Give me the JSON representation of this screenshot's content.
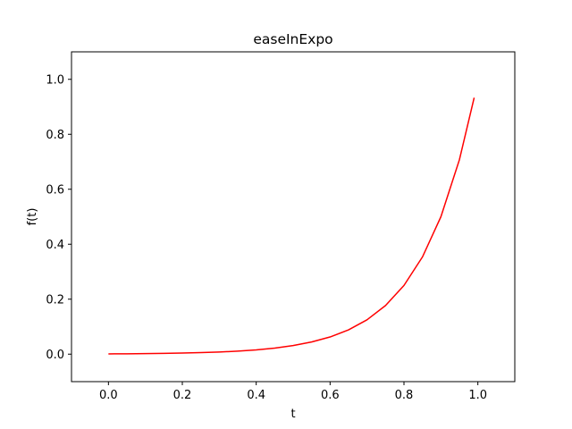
{
  "chart_data": {
    "type": "line",
    "title": "easeInExpo",
    "xlabel": "t",
    "ylabel": "f(t)",
    "xlim": [
      -0.1,
      1.1
    ],
    "ylim": [
      -0.1,
      1.1
    ],
    "xticks": [
      0.0,
      0.2,
      0.4,
      0.6,
      0.8,
      1.0
    ],
    "xtick_labels": [
      "0.0",
      "0.2",
      "0.4",
      "0.6",
      "0.8",
      "1.0"
    ],
    "yticks": [
      0.0,
      0.2,
      0.4,
      0.6,
      0.8,
      1.0
    ],
    "ytick_labels": [
      "0.0",
      "0.2",
      "0.4",
      "0.6",
      "0.8",
      "1.0"
    ],
    "grid": false,
    "series": [
      {
        "color": "#ff0000",
        "x": [
          0.0,
          0.05,
          0.1,
          0.15,
          0.2,
          0.25,
          0.3,
          0.35,
          0.4,
          0.45,
          0.5,
          0.55,
          0.6,
          0.65,
          0.7,
          0.75,
          0.8,
          0.85,
          0.9,
          0.95,
          0.99
        ],
        "y": [
          0.001,
          0.0014,
          0.002,
          0.0028,
          0.0039,
          0.0055,
          0.0078,
          0.011,
          0.0156,
          0.0221,
          0.0313,
          0.0442,
          0.0625,
          0.0884,
          0.125,
          0.1768,
          0.25,
          0.3536,
          0.5,
          0.7071,
          0.933
        ]
      }
    ]
  }
}
